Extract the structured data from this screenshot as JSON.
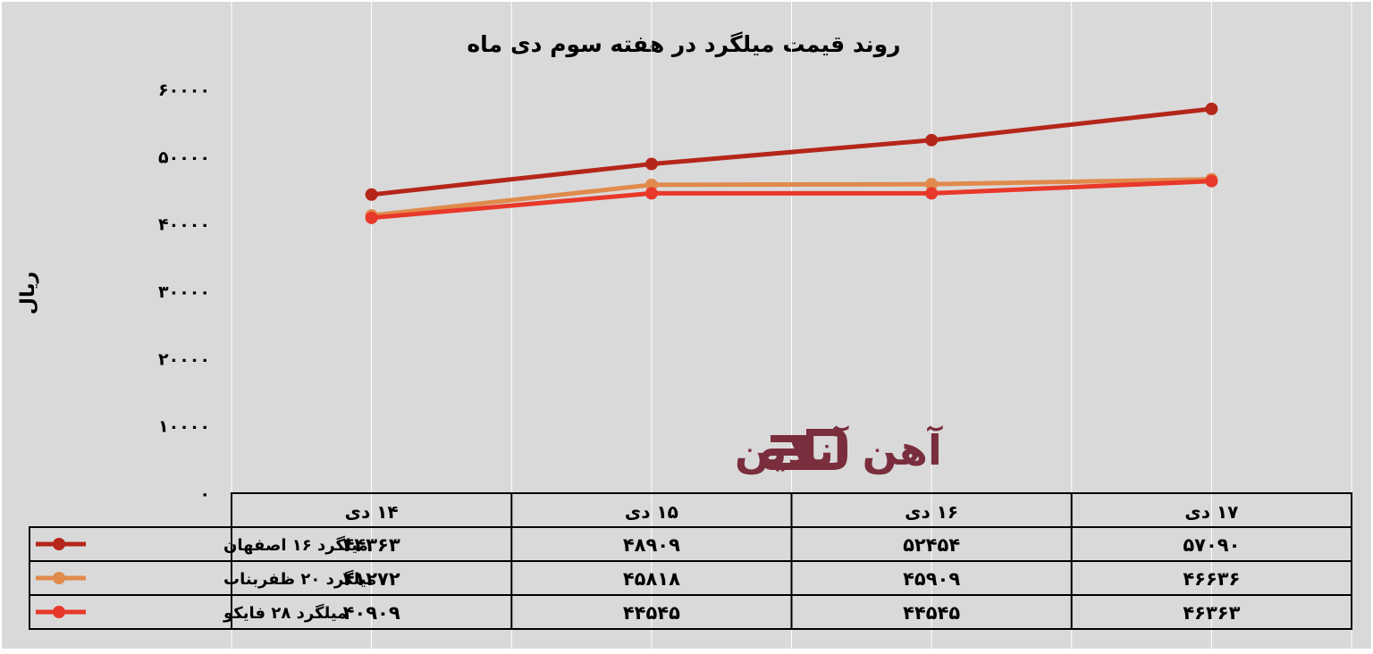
{
  "chart_data": {
    "type": "line",
    "title": "روند قیمت میلگرد در هفته سوم دی ماه",
    "ylabel": "ریال",
    "ylim": [
      0,
      60000
    ],
    "yticks": [
      "۰",
      "۱۰۰۰۰",
      "۲۰۰۰۰",
      "۳۰۰۰۰",
      "۴۰۰۰۰",
      "۵۰۰۰۰",
      "۶۰۰۰۰"
    ],
    "ytick_values": [
      0,
      10000,
      20000,
      30000,
      40000,
      50000,
      60000
    ],
    "categories": [
      "۱۴ دی",
      "۱۵ دی",
      "۱۶ دی",
      "۱۷ دی"
    ],
    "grid": true,
    "legend": "data-table",
    "series": [
      {
        "name": "میلگرد ۱۶ اصفهان",
        "color": "#b5261a",
        "values": [
          44363,
          48909,
          52454,
          57090
        ],
        "labels": [
          "۴۴۳۶۳",
          "۴۸۹۰۹",
          "۵۲۴۵۴",
          "۵۷۰۹۰"
        ]
      },
      {
        "name": "میلگرد ۲۰ ظفربناب",
        "color": "#e08a4c",
        "values": [
          41272,
          45818,
          45909,
          46636
        ],
        "labels": [
          "۴۱۲۷۲",
          "۴۵۸۱۸",
          "۴۵۹۰۹",
          "۴۶۶۳۶"
        ]
      },
      {
        "name": "میلگرد ۲۸ فایکو",
        "color": "#e8382a",
        "values": [
          40909,
          44545,
          44545,
          46363
        ],
        "labels": [
          "۴۰۹۰۹",
          "۴۴۵۴۵",
          "۴۴۵۴۵",
          "۴۶۳۶۳"
        ]
      }
    ]
  },
  "watermark": {
    "text": "آهن آنلاین",
    "color": "#7a2d3c"
  }
}
